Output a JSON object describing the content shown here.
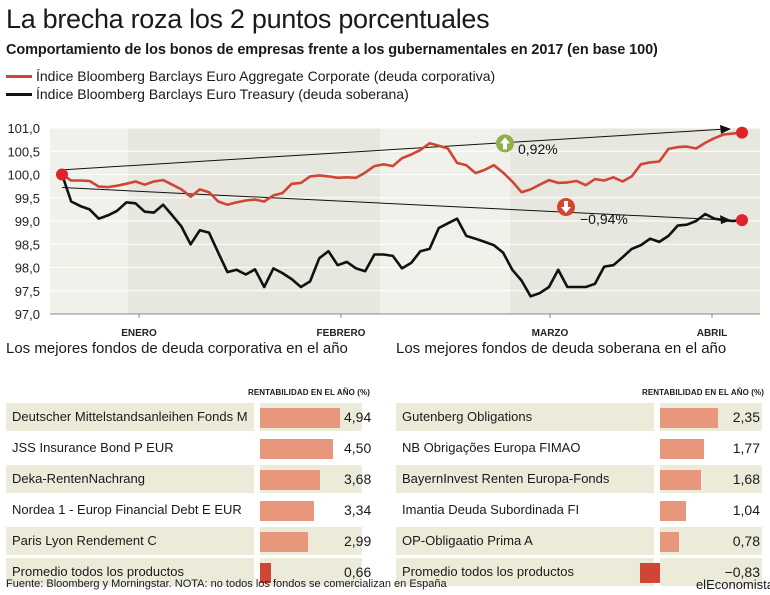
{
  "title": "La brecha roza los 2 puntos porcentuales",
  "subtitle": "Comportamiento de los bonos de empresas frente a los gubernamentales en 2017 (en base 100)",
  "legend": [
    {
      "label": "Índice Bloomberg Barclays Euro Aggregate Corporate (deuda corporativa)",
      "color": "#cf4634"
    },
    {
      "label": "Índice Bloomberg Barclays Euro Treasury (deuda soberana)",
      "color": "#111111"
    }
  ],
  "chart_data": {
    "type": "line",
    "ylim": [
      97.0,
      101.0
    ],
    "yticks": [
      "101,0",
      "100,5",
      "100,0",
      "99,5",
      "99,0",
      "98,5",
      "98,0",
      "97,5",
      "97,0"
    ],
    "xticks": [
      "ENERO",
      "FEBRERO",
      "MARZO",
      "ABRIL"
    ],
    "grid": true,
    "series": [
      {
        "name": "Índice Bloomberg Barclays Euro Aggregate Corporate (deuda corporativa)",
        "color": "#cf4634",
        "values": [
          100.0,
          99.87,
          99.87,
          99.86,
          99.74,
          99.73,
          99.76,
          99.8,
          99.85,
          99.78,
          99.85,
          99.88,
          99.78,
          99.68,
          99.52,
          99.68,
          99.62,
          99.42,
          99.35,
          99.4,
          99.44,
          99.46,
          99.42,
          99.55,
          99.6,
          99.8,
          99.82,
          99.96,
          99.98,
          99.96,
          99.93,
          99.94,
          99.93,
          100.04,
          100.18,
          100.22,
          100.18,
          100.35,
          100.43,
          100.53,
          100.67,
          100.62,
          100.56,
          100.25,
          100.2,
          100.03,
          100.1,
          100.2,
          100.04,
          99.85,
          99.62,
          99.68,
          99.78,
          99.88,
          99.82,
          99.83,
          99.86,
          99.77,
          99.9,
          99.87,
          99.94,
          99.85,
          99.96,
          100.22,
          100.26,
          100.28,
          100.55,
          100.59,
          100.6,
          100.56,
          100.68,
          100.78,
          100.86,
          100.88,
          100.9
        ]
      },
      {
        "name": "Índice Bloomberg Barclays Euro Treasury (deuda soberana)",
        "color": "#111111",
        "values": [
          100.0,
          99.42,
          99.32,
          99.25,
          99.05,
          99.12,
          99.22,
          99.4,
          99.38,
          99.2,
          99.18,
          99.35,
          99.12,
          98.88,
          98.5,
          98.8,
          98.75,
          98.32,
          97.9,
          97.95,
          97.85,
          97.96,
          97.58,
          97.98,
          97.88,
          97.75,
          97.58,
          97.7,
          98.2,
          98.35,
          98.05,
          98.12,
          97.98,
          97.92,
          98.28,
          98.28,
          98.25,
          97.98,
          98.1,
          98.35,
          98.4,
          98.85,
          98.95,
          99.05,
          98.68,
          98.62,
          98.55,
          98.48,
          98.32,
          97.95,
          97.72,
          97.38,
          97.45,
          97.58,
          97.95,
          97.58,
          97.58,
          97.58,
          97.65,
          98.02,
          98.05,
          98.22,
          98.4,
          98.48,
          98.62,
          98.55,
          98.68,
          98.9,
          98.92,
          99.0,
          99.15,
          99.05,
          99.02,
          99.0,
          99.02
        ]
      }
    ],
    "annotations": [
      {
        "text": "0,92%",
        "direction": "up",
        "color": "#8fb04a"
      },
      {
        "text": "−0,94%",
        "direction": "down",
        "color": "#cf4634"
      }
    ]
  },
  "panels": [
    {
      "title": "Los mejores fondos de deuda corporativa en el año",
      "column_header": "RENTABILIDAD EN EL AÑO (%)",
      "max": 4.94,
      "rows": [
        {
          "name": "Deutscher Mittelstandsanleihen Fonds M",
          "value": 4.94,
          "label": "4,94"
        },
        {
          "name": "JSS Insurance Bond P EUR",
          "value": 4.5,
          "label": "4,50"
        },
        {
          "name": "Deka-RentenNachrang",
          "value": 3.68,
          "label": "3,68"
        },
        {
          "name": "Nordea 1 - Europ Financial Debt E EUR",
          "value": 3.34,
          "label": "3,34"
        },
        {
          "name": "Paris Lyon Rendement C",
          "value": 2.99,
          "label": "2,99"
        },
        {
          "name": "Promedio todos los productos",
          "value": 0.66,
          "label": "0,66",
          "average": true
        }
      ]
    },
    {
      "title": "Los mejores fondos de deuda soberana en el año",
      "column_header": "RENTABILIDAD EN EL AÑO (%)",
      "max": 2.35,
      "rows": [
        {
          "name": "Gutenberg Obligations",
          "value": 2.35,
          "label": "2,35"
        },
        {
          "name": "NB Obrigações Europa FIMAO",
          "value": 1.77,
          "label": "1,77"
        },
        {
          "name": "BayernInvest Renten Europa-Fonds",
          "value": 1.68,
          "label": "1,68"
        },
        {
          "name": "Imantia Deuda Subordinada FI",
          "value": 1.04,
          "label": "1,04"
        },
        {
          "name": "OP-Obligaatio Prima A",
          "value": 0.78,
          "label": "0,78"
        },
        {
          "name": "Promedio todos los productos",
          "value": -0.83,
          "label": "−0,83",
          "average": true
        }
      ]
    }
  ],
  "footer": "Fuente: Bloomberg y Morningstar. NOTA: no todos los fondos se comercializan en España",
  "brand": "elEconomista"
}
